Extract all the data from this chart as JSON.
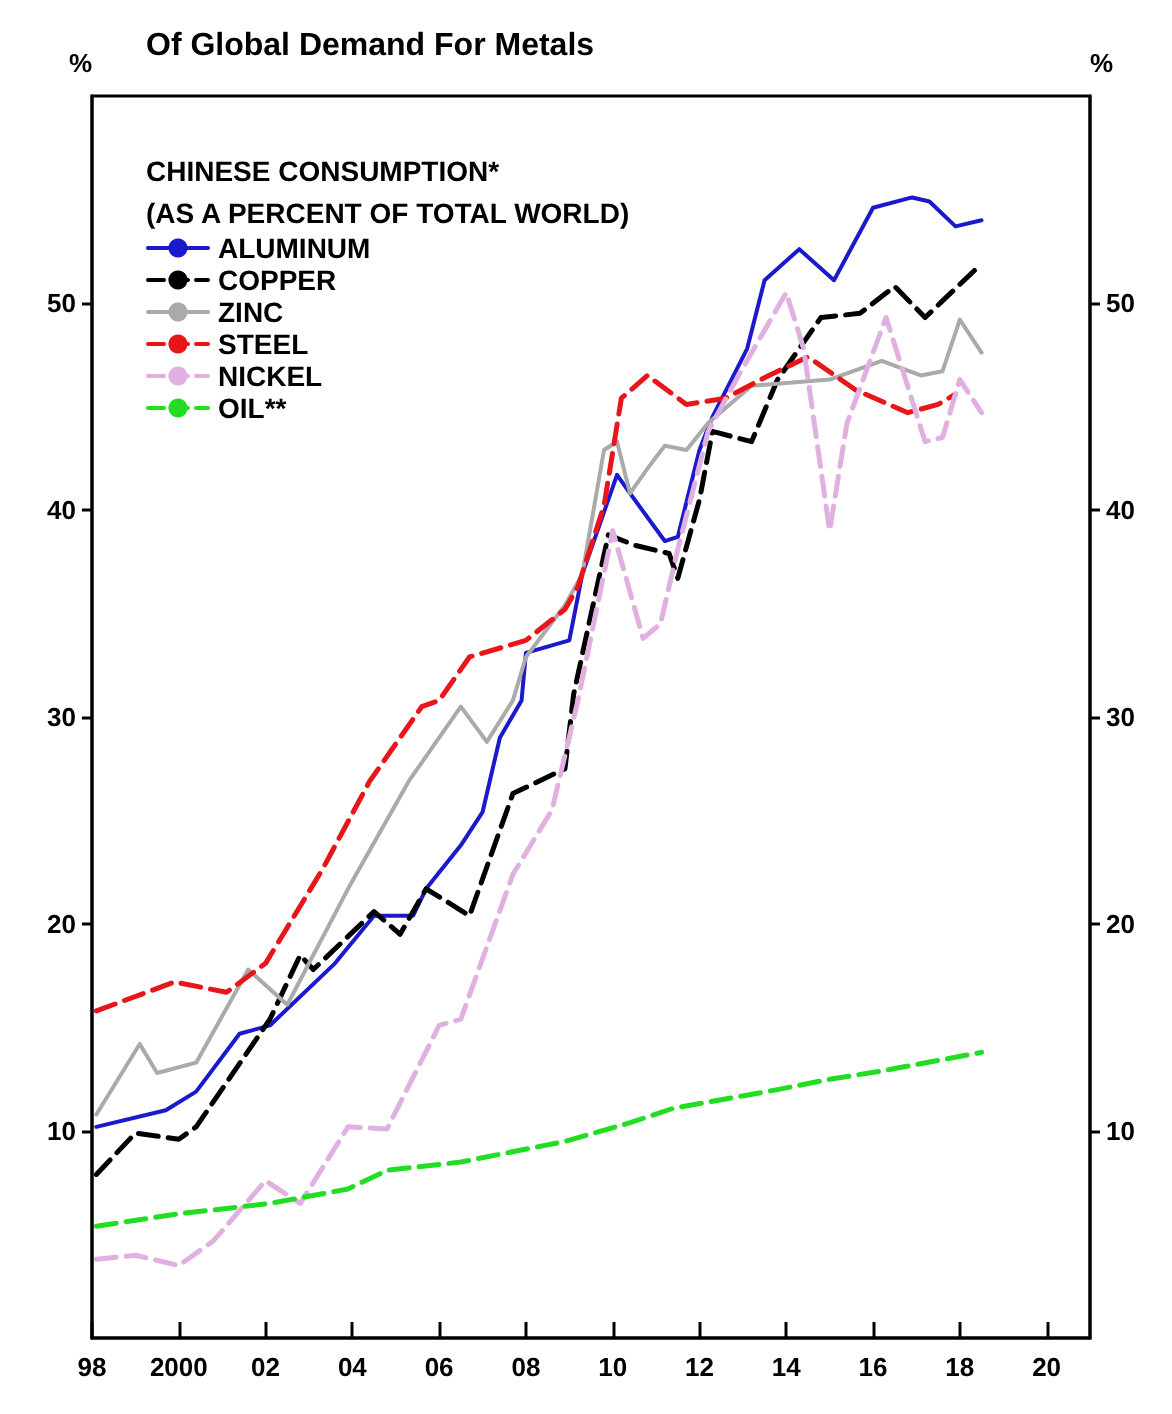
{
  "chart_data": {
    "type": "line",
    "title": "Of Global Demand For Metals",
    "legend_title": "CHINESE CONSUMPTION*\n(AS A PERCENT OF TOTAL WORLD)",
    "ylabel": "%",
    "y2label": "%",
    "xlim": [
      1998,
      2021
    ],
    "xticks": [
      {
        "value": 1998,
        "label": "98"
      },
      {
        "value": 2000,
        "label": "2000"
      },
      {
        "value": 2002,
        "label": "02"
      },
      {
        "value": 2004,
        "label": "04"
      },
      {
        "value": 2006,
        "label": "06"
      },
      {
        "value": 2008,
        "label": "08"
      },
      {
        "value": 2010,
        "label": "10"
      },
      {
        "value": 2012,
        "label": "12"
      },
      {
        "value": 2014,
        "label": "14"
      },
      {
        "value": 2016,
        "label": "16"
      },
      {
        "value": 2018,
        "label": "18"
      },
      {
        "value": 2020,
        "label": "20"
      }
    ],
    "ylim": [
      0,
      60
    ],
    "yticks": [
      10,
      20,
      30,
      40,
      50
    ],
    "y2lim": [
      0,
      60
    ],
    "y2ticks": [
      10,
      20,
      30,
      40,
      50
    ],
    "grid": false,
    "legend": "top left",
    "marker": "none",
    "series": [
      {
        "name": "ALUMINUM",
        "color": "#1a1acc",
        "line_style": "solid",
        "x": [
          1998.1,
          1999.7,
          2000.4,
          2001.4,
          2002.1,
          2003.6,
          2004.5,
          2005.4,
          2005.7,
          2006.5,
          2007,
          2007.4,
          2007.9,
          2008,
          2009,
          2009.3,
          2010.1,
          2010.4,
          2011.2,
          2011.5,
          2012,
          2012.3,
          2013.1,
          2013.5,
          2014.3,
          2015.1,
          2016,
          2016.9,
          2017.3,
          2017.9,
          2018.5
        ],
        "values": [
          10.2,
          11.0,
          11.9,
          14.7,
          15.1,
          18.1,
          20.4,
          20.4,
          21.7,
          23.8,
          25.4,
          29,
          30.8,
          33.1,
          33.7,
          36.9,
          41.7,
          40.8,
          38.5,
          38.7,
          42.9,
          44.5,
          47.8,
          51.1,
          52.6,
          51.1,
          54.6,
          55.1,
          54.9,
          53.7,
          54.0
        ]
      },
      {
        "name": "COPPER",
        "color": "#000000",
        "line_style": "dashed",
        "x": [
          1998.1,
          1999,
          2000,
          2000.4,
          2002.1,
          2002.8,
          2003.1,
          2004.5,
          2005.1,
          2005.7,
          2006.7,
          2007.7,
          2008.9,
          2009.1,
          2009.9,
          2010.5,
          2011.3,
          2011.5,
          2012,
          2012.3,
          2013.2,
          2013.8,
          2014.8,
          2015.7,
          2016.5,
          2017.2,
          2017.6,
          2018.5
        ],
        "values": [
          7.9,
          9.9,
          9.6,
          10.2,
          15.4,
          18.5,
          17.8,
          20.6,
          19.5,
          21.7,
          20.4,
          26.3,
          27.5,
          31.1,
          38.8,
          38.3,
          37.9,
          36.7,
          40.5,
          43.8,
          43.3,
          46.3,
          49.3,
          49.5,
          50.8,
          49.3,
          50.1,
          51.9
        ]
      },
      {
        "name": "ZINC",
        "color": "#aaaaaa",
        "line_style": "solid",
        "x": [
          1998.1,
          1999.1,
          1999.5,
          2000.4,
          2001.6,
          2002.5,
          2003.9,
          2005.3,
          2006.5,
          2007.1,
          2007.7,
          2008,
          2008.9,
          2009.3,
          2009.8,
          2010.1,
          2010.4,
          2010.8,
          2011.2,
          2011.7,
          2012.2,
          2013.2,
          2015,
          2016.2,
          2017.1,
          2017.6,
          2018,
          2018.5
        ],
        "values": [
          10.8,
          14.2,
          12.8,
          13.3,
          17.8,
          16.1,
          21.7,
          26.9,
          30.5,
          28.8,
          30.8,
          32.9,
          35.4,
          36.9,
          42.9,
          43.3,
          40.8,
          42.0,
          43.1,
          42.9,
          44.2,
          46,
          46.3,
          47.2,
          46.5,
          46.7,
          49.2,
          47.6
        ]
      },
      {
        "name": "STEEL",
        "color": "#e8161b",
        "line_style": "dashed",
        "x": [
          1998.1,
          1999.9,
          2001.1,
          2002,
          2003.3,
          2004.4,
          2005.6,
          2006,
          2006.7,
          2008,
          2008.9,
          2009.2,
          2009.8,
          2010.2,
          2010.8,
          2011.7,
          2012.6,
          2013.6,
          2014.5,
          2015.6,
          2016.8,
          2017.5,
          2017.9
        ],
        "values": [
          15.8,
          17.2,
          16.7,
          18.1,
          22.6,
          26.9,
          30.5,
          30.8,
          32.9,
          33.7,
          35.2,
          36.3,
          40.2,
          45.4,
          46.5,
          45.1,
          45.4,
          46.5,
          47.4,
          45.8,
          44.7,
          45.1,
          45.6
        ]
      },
      {
        "name": "NICKEL",
        "color": "#e0b0e0",
        "line_style": "dashed",
        "x": [
          1998.1,
          1999,
          2000,
          2000.8,
          2002,
          2002.8,
          2003.9,
          2004.8,
          2006,
          2006.5,
          2007.7,
          2008.6,
          2009.2,
          2010,
          2010.7,
          2011.1,
          2011.5,
          2012.2,
          2012.9,
          2014,
          2014.4,
          2015,
          2015.4,
          2016.3,
          2017.2,
          2017.6,
          2018,
          2018.5
        ],
        "values": [
          3.8,
          4,
          3.5,
          4.7,
          7.6,
          6.5,
          10.2,
          10.1,
          15.1,
          15.4,
          22.4,
          25.5,
          30.8,
          39,
          33.8,
          34.5,
          38.1,
          43.8,
          46.5,
          50.5,
          47.8,
          39,
          44.2,
          49.3,
          43.3,
          43.5,
          46.3,
          44.7
        ]
      },
      {
        "name": "OIL**",
        "color": "#22dd22",
        "line_style": "dashed",
        "x": [
          1998.1,
          2000,
          2002.1,
          2003.9,
          2004.8,
          2006.5,
          2008.9,
          2010.4,
          2011.4,
          2013.8,
          2015,
          2016.2,
          2018.5
        ],
        "values": [
          5.4,
          6.0,
          6.5,
          7.2,
          8.1,
          8.5,
          9.5,
          10.4,
          11.1,
          12,
          12.5,
          12.9,
          13.8
        ]
      }
    ]
  }
}
